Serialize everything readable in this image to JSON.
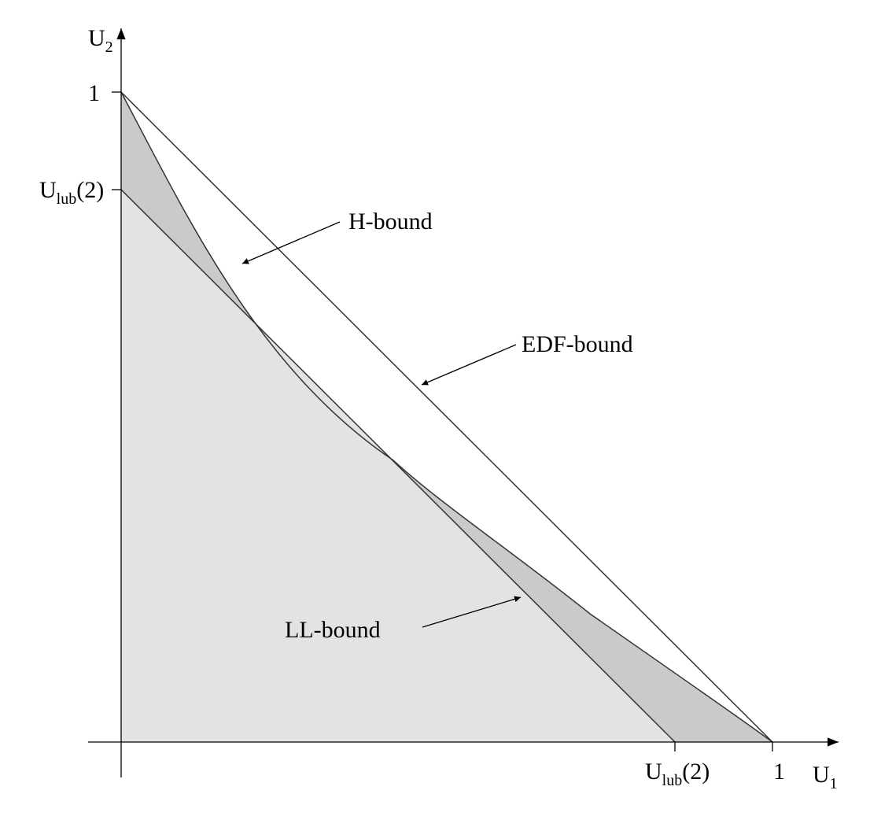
{
  "colors": {
    "background": "#ffffff",
    "ll_region": "#e3e3e3",
    "h_region": "#cacaca",
    "line": "#333333",
    "axis": "#000000"
  },
  "axes": {
    "x": {
      "name": "U",
      "sub": "1"
    },
    "y": {
      "name": "U",
      "sub": "2"
    }
  },
  "ticks": {
    "x_ulub": {
      "main": "U",
      "sub": "lub",
      "rest": "(2)"
    },
    "x_one": "1",
    "y_one": "1",
    "y_ulub": {
      "main": "U",
      "sub": "lub",
      "rest": "(2)"
    }
  },
  "annotations": {
    "h_bound": "H-bound",
    "edf_bound": "EDF-bound",
    "ll_bound": "LL-bound"
  }
}
